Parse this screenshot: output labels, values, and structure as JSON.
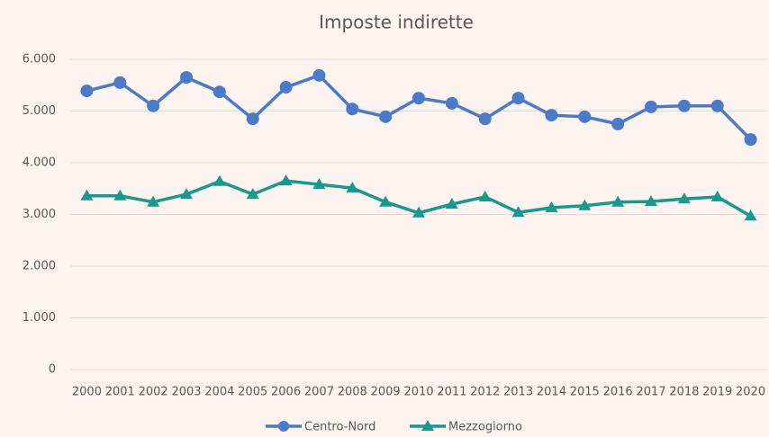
{
  "chart_data": {
    "type": "line",
    "title": "Imposte indirette",
    "categories": [
      "2000",
      "2001",
      "2002",
      "2003",
      "2004",
      "2005",
      "2006",
      "2007",
      "2008",
      "2009",
      "2010",
      "2011",
      "2012",
      "2013",
      "2014",
      "2015",
      "2016",
      "2017",
      "2018",
      "2019",
      "2020"
    ],
    "series": [
      {
        "name": "Centro-Nord",
        "color": "#4a7bc8",
        "marker": "circle",
        "values": [
          5390,
          5550,
          5100,
          5650,
          5370,
          4850,
          5460,
          5690,
          5040,
          4890,
          5250,
          5150,
          4850,
          5250,
          4920,
          4890,
          4750,
          5080,
          5100,
          5100,
          4450
        ]
      },
      {
        "name": "Mezzogiorno",
        "color": "#17998c",
        "marker": "triangle",
        "values": [
          3360,
          3360,
          3240,
          3390,
          3640,
          3390,
          3650,
          3580,
          3510,
          3240,
          3030,
          3200,
          3340,
          3040,
          3130,
          3170,
          3240,
          3250,
          3300,
          3340,
          2970
        ]
      }
    ],
    "ylim": [
      0,
      6000
    ],
    "yticks": [
      {
        "value": 0,
        "label": "0"
      },
      {
        "value": 1000,
        "label": "1.000"
      },
      {
        "value": 2000,
        "label": "2.000"
      },
      {
        "value": 3000,
        "label": "3.000"
      },
      {
        "value": 4000,
        "label": "4.000"
      },
      {
        "value": 5000,
        "label": "5.000"
      },
      {
        "value": 6000,
        "label": "6.000"
      }
    ],
    "grid": true,
    "legend": "bottom"
  }
}
